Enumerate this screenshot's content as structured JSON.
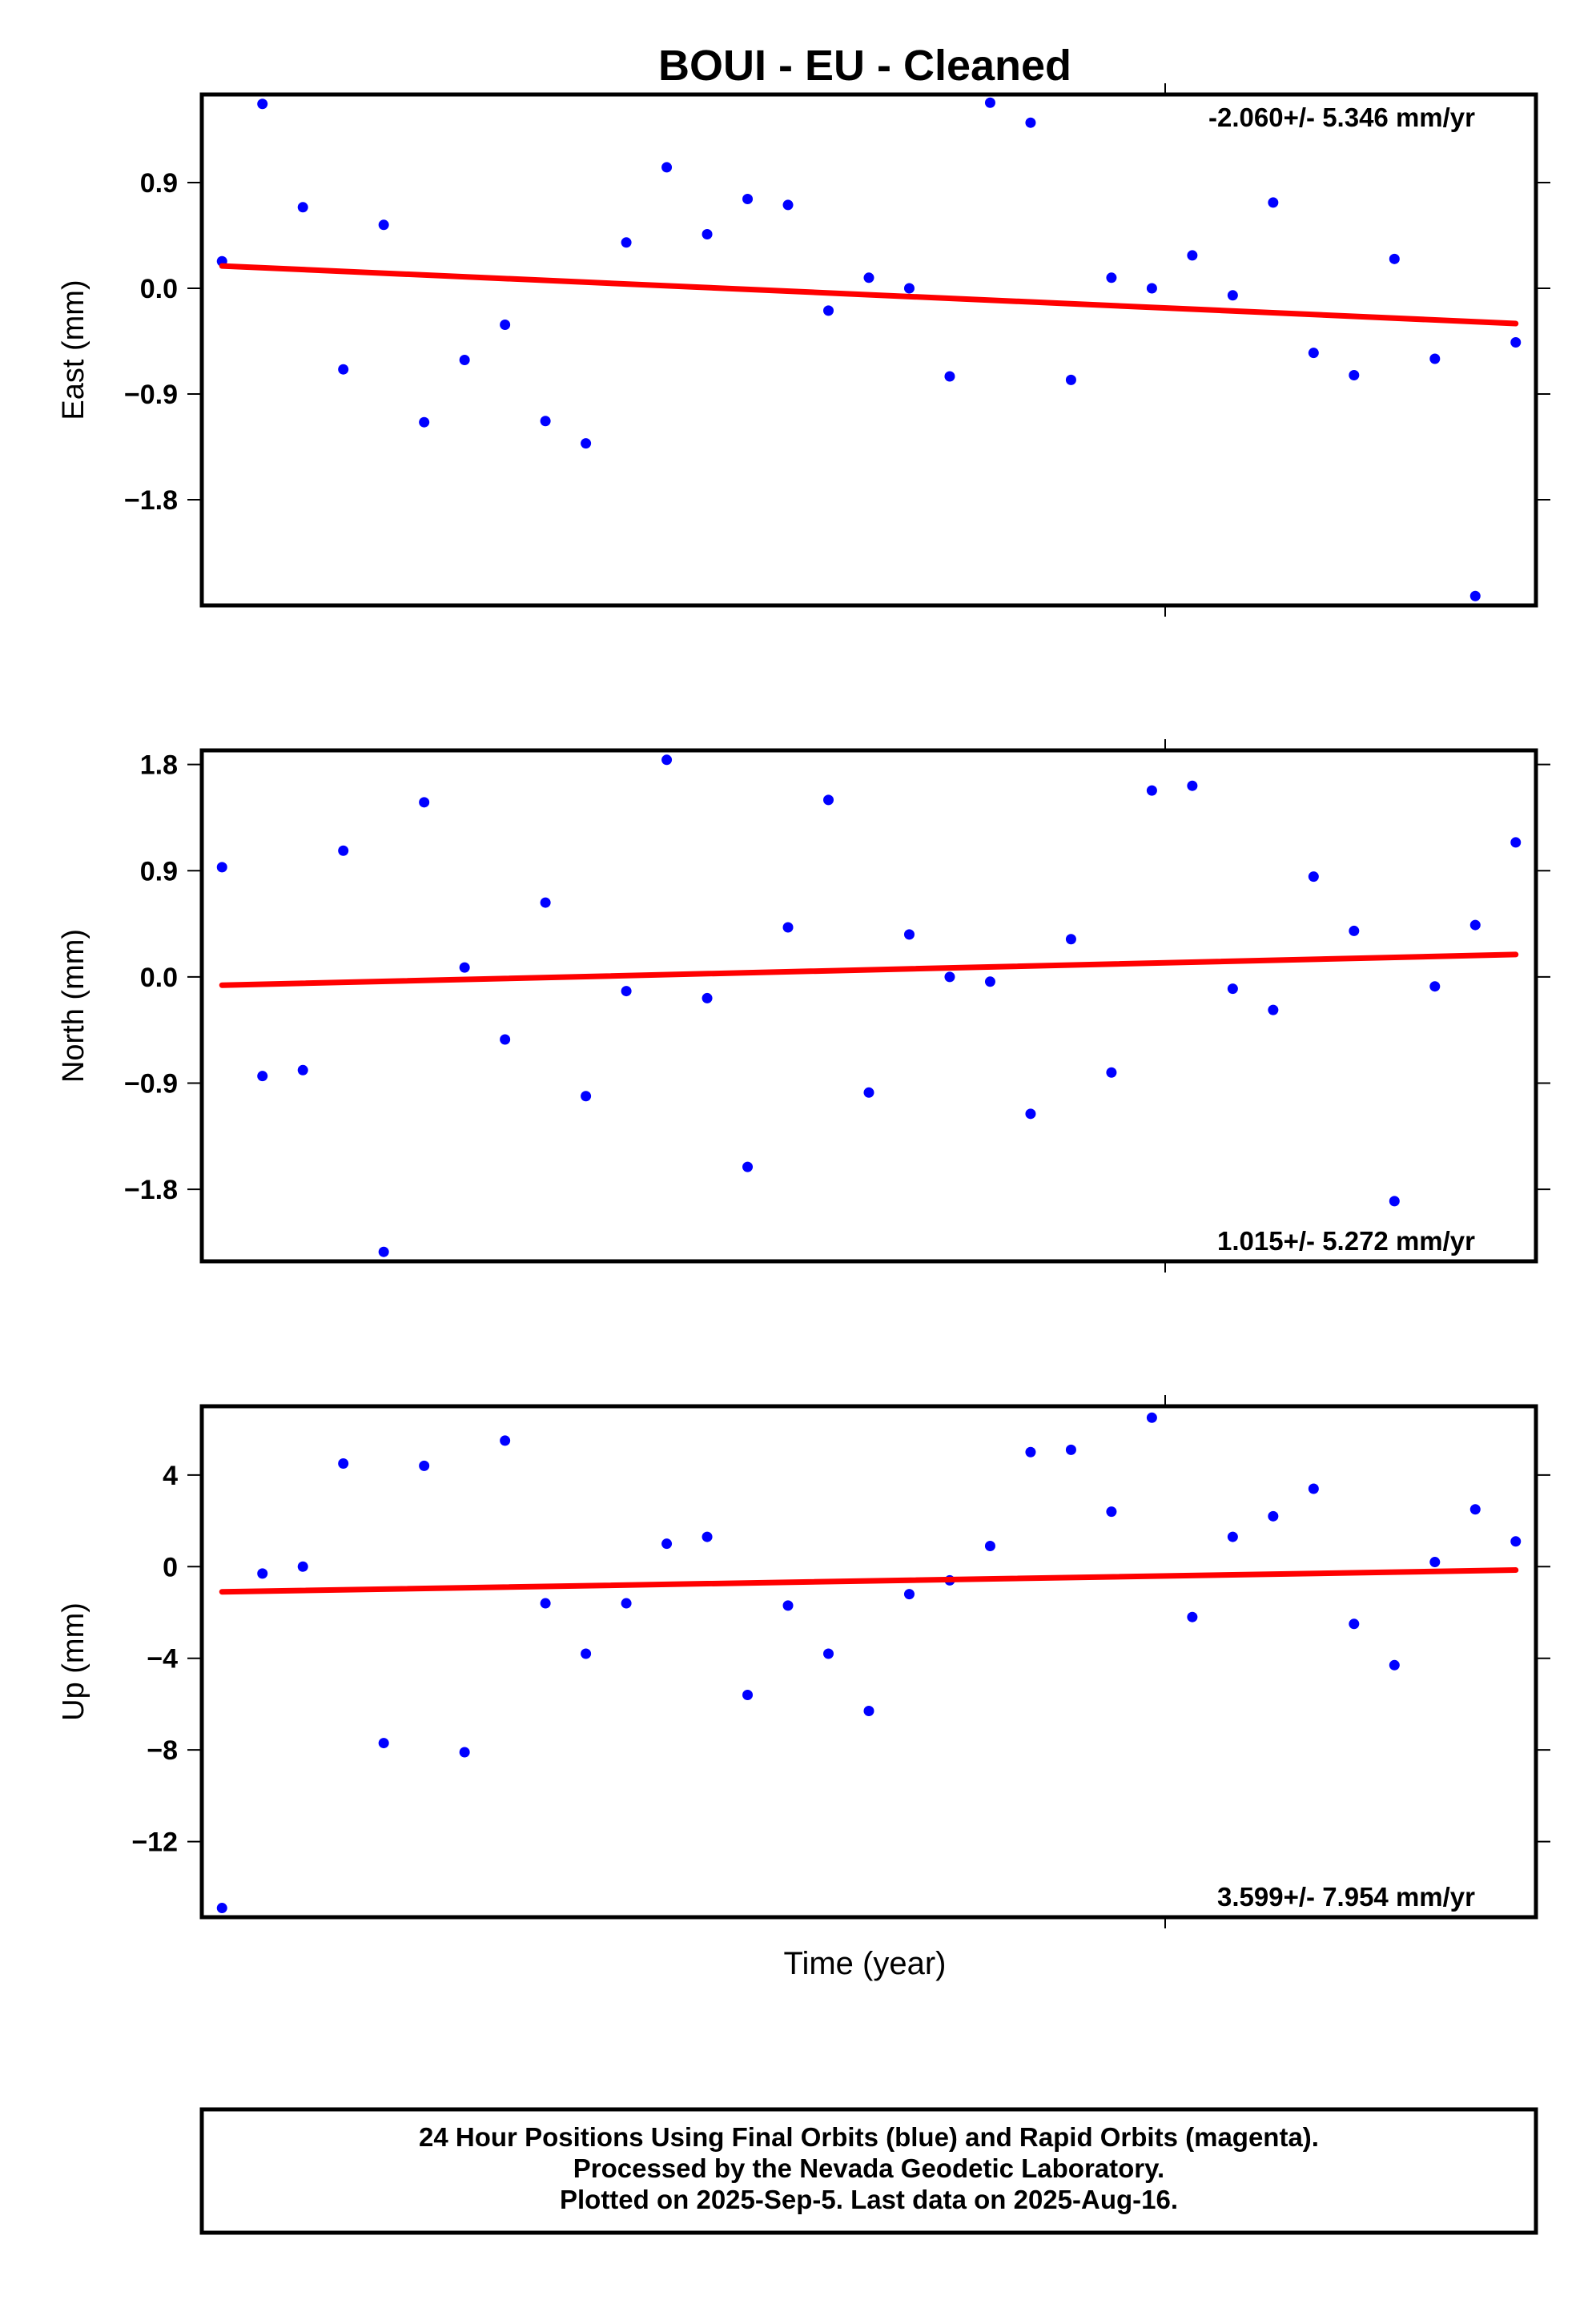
{
  "page": {
    "title": "BOUI  - EU - Cleaned",
    "xlabel": "Time (year)",
    "footer": [
      "24 Hour Positions Using Final Orbits (blue) and Rapid Orbits (magenta).",
      "Processed by the Nevada Geodetic Laboratory.",
      "Plotted on 2025-Sep-5. Last data on 2025-Aug-16."
    ]
  },
  "colors": {
    "points": "#0000ff",
    "trend": "#ff0000",
    "axes": "#000000"
  },
  "chart_data": [
    {
      "type": "scatter",
      "id": "east",
      "ylabel": "East (mm)",
      "rate_label": "-2.060+/- 5.346 mm/yr",
      "rate_position": "top-right",
      "yticks": [
        0.9,
        0.0,
        -0.9,
        -1.8
      ],
      "ytick_labels": [
        "0.9",
        "0.0",
        "−0.9",
        "−1.8"
      ],
      "ylim": [
        -2.7,
        1.65
      ],
      "xlim": [
        0,
        33
      ],
      "x": [
        0.5,
        1.5,
        2.5,
        3.5,
        4.5,
        5.5,
        6.5,
        7.5,
        8.5,
        9.5,
        10.5,
        11.5,
        12.5,
        13.5,
        14.5,
        15.5,
        16.5,
        17.5,
        18.5,
        19.5,
        20.5,
        21.5,
        22.5,
        23.5,
        24.5,
        25.5,
        26.5,
        27.5,
        28.5,
        29.5,
        30.5,
        31.5,
        32.5
      ],
      "y": [
        0.23,
        1.57,
        0.69,
        -0.69,
        0.54,
        -1.14,
        -0.61,
        -0.31,
        -1.13,
        -1.32,
        0.39,
        1.03,
        0.46,
        0.76,
        0.71,
        -0.19,
        0.09,
        0.0,
        -0.75,
        1.58,
        1.41,
        -0.78,
        0.09,
        0.0,
        0.28,
        -0.06,
        0.73,
        -0.55,
        -0.74,
        0.25,
        -0.6,
        -2.62,
        -0.46
      ],
      "trend": {
        "x": [
          0.5,
          32.5
        ],
        "y": [
          0.19,
          -0.3
        ]
      }
    },
    {
      "type": "scatter",
      "id": "north",
      "ylabel": "North (mm)",
      "rate_label": "1.015+/- 5.272 mm/yr",
      "rate_position": "bottom-right",
      "yticks": [
        1.8,
        0.9,
        0.0,
        -0.9,
        -1.8
      ],
      "ytick_labels": [
        "1.8",
        "0.9",
        "0.0",
        "−0.9",
        "−1.8"
      ],
      "ylim": [
        -2.41,
        1.92
      ],
      "xlim": [
        0,
        33
      ],
      "x": [
        0.5,
        1.5,
        2.5,
        3.5,
        4.5,
        5.5,
        6.5,
        7.5,
        8.5,
        9.5,
        10.5,
        11.5,
        12.5,
        13.5,
        14.5,
        15.5,
        16.5,
        17.5,
        18.5,
        19.5,
        20.5,
        21.5,
        22.5,
        23.5,
        24.5,
        25.5,
        26.5,
        27.5,
        28.5,
        29.5,
        30.5,
        31.5,
        32.5
      ],
      "y": [
        0.93,
        -0.84,
        -0.79,
        1.07,
        -2.33,
        1.48,
        0.08,
        -0.53,
        0.63,
        -1.01,
        -0.12,
        1.84,
        -0.18,
        -1.61,
        0.42,
        1.5,
        -0.98,
        0.36,
        0.0,
        -0.04,
        -1.16,
        0.32,
        -0.81,
        1.58,
        1.62,
        -0.1,
        -0.28,
        0.85,
        0.39,
        -1.9,
        -0.08,
        0.44,
        1.14
      ],
      "trend": {
        "x": [
          0.5,
          32.5
        ],
        "y": [
          -0.07,
          0.19
        ]
      }
    },
    {
      "type": "scatter",
      "id": "up",
      "ylabel": "Up (mm)",
      "rate_label": "3.599+/- 7.954 mm/yr",
      "rate_position": "bottom-right",
      "yticks": [
        4,
        0,
        -4,
        -8,
        -12
      ],
      "ytick_labels": [
        "4",
        "0",
        "−4",
        "−8",
        "−12"
      ],
      "ylim": [
        -15.3,
        7.0
      ],
      "xlim": [
        0,
        33
      ],
      "x": [
        0.5,
        1.5,
        2.5,
        3.5,
        4.5,
        5.5,
        6.5,
        7.5,
        8.5,
        9.5,
        10.5,
        11.5,
        12.5,
        13.5,
        14.5,
        15.5,
        16.5,
        17.5,
        18.5,
        19.5,
        20.5,
        21.5,
        22.5,
        23.5,
        24.5,
        25.5,
        26.5,
        27.5,
        28.5,
        29.5,
        30.5,
        31.5,
        32.5
      ],
      "y": [
        -14.9,
        -0.3,
        0.0,
        4.5,
        -7.7,
        4.4,
        -8.1,
        5.5,
        -1.6,
        -3.8,
        -1.6,
        1.0,
        1.3,
        -5.6,
        -1.7,
        -3.8,
        -6.3,
        -1.2,
        -0.6,
        0.9,
        5.0,
        5.1,
        2.4,
        6.5,
        -2.2,
        1.3,
        2.2,
        3.4,
        -2.5,
        -4.3,
        0.2,
        2.5,
        1.1
      ],
      "trend": {
        "x": [
          0.5,
          32.5
        ],
        "y": [
          -1.1,
          -0.15
        ]
      }
    }
  ]
}
